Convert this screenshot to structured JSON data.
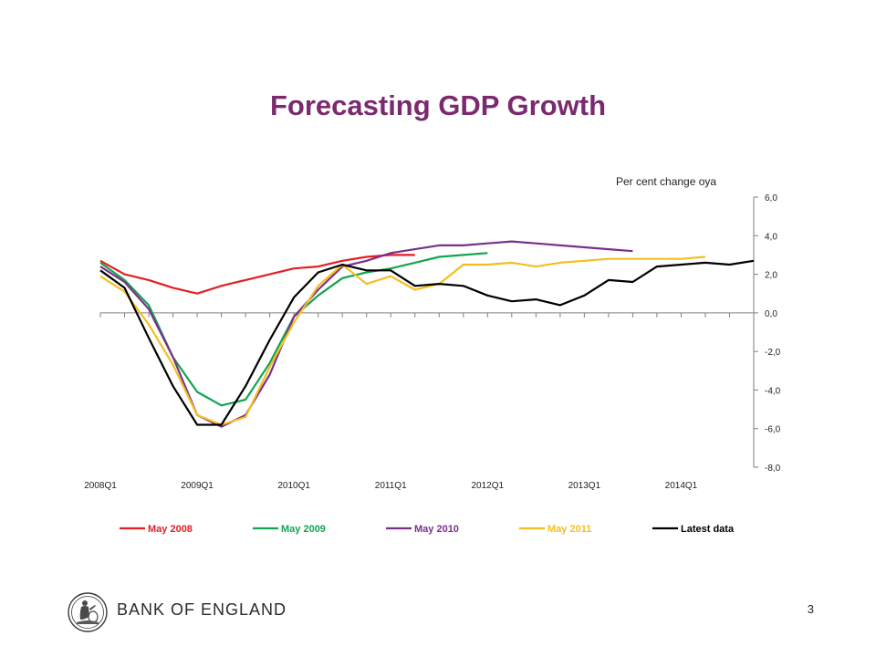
{
  "slide": {
    "title": "Forecasting GDP Growth",
    "page_number": "3",
    "org_name": "BANK OF ENGLAND",
    "logo_icon": "britannia-seal-icon"
  },
  "chart_data": {
    "type": "line",
    "title": "",
    "unit_label": "Per cent change oya",
    "ylim": [
      -8,
      6
    ],
    "y_ticks": [
      "6,0",
      "4,0",
      "2,0",
      "0,0",
      "-2,0",
      "-4,0",
      "-6,0",
      "-8,0"
    ],
    "y_tick_values": [
      6,
      4,
      2,
      0,
      -2,
      -4,
      -6,
      -8
    ],
    "x_tick_labels": [
      "2008Q1",
      "2009Q1",
      "2010Q1",
      "2011Q1",
      "2012Q1",
      "2013Q1",
      "2014Q1"
    ],
    "y_axis_position": "right",
    "legend_position": "bottom",
    "grid": false,
    "x": [
      "2008Q1",
      "2008Q2",
      "2008Q3",
      "2008Q4",
      "2009Q1",
      "2009Q2",
      "2009Q3",
      "2009Q4",
      "2010Q1",
      "2010Q2",
      "2010Q3",
      "2010Q4",
      "2011Q1",
      "2011Q2",
      "2011Q3",
      "2011Q4",
      "2012Q1",
      "2012Q2",
      "2012Q3",
      "2012Q4",
      "2013Q1",
      "2013Q2",
      "2013Q3",
      "2013Q4",
      "2014Q1",
      "2014Q2",
      "2014Q3",
      "2014Q4"
    ],
    "series": [
      {
        "name": "May 2008",
        "color": "#e31e24",
        "values": [
          2.7,
          2.0,
          1.7,
          1.3,
          1.0,
          1.4,
          1.7,
          2.0,
          2.3,
          2.4,
          2.7,
          2.9,
          3.0,
          3.0,
          null,
          null,
          null,
          null,
          null,
          null,
          null,
          null,
          null,
          null,
          null,
          null,
          null,
          null
        ]
      },
      {
        "name": "May 2009",
        "color": "#12a54f",
        "values": [
          2.6,
          1.7,
          0.4,
          -2.3,
          -4.1,
          -4.8,
          -4.5,
          -2.6,
          -0.2,
          0.9,
          1.8,
          2.1,
          2.3,
          2.6,
          2.9,
          3.0,
          3.1,
          null,
          null,
          null,
          null,
          null,
          null,
          null,
          null,
          null,
          null,
          null
        ]
      },
      {
        "name": "May 2010",
        "color": "#7b2f8c",
        "values": [
          2.4,
          1.6,
          0.2,
          -2.3,
          -5.3,
          -5.9,
          -5.3,
          -3.2,
          -0.2,
          1.2,
          2.4,
          2.7,
          3.1,
          3.3,
          3.5,
          3.5,
          3.6,
          3.7,
          3.6,
          3.5,
          3.4,
          3.3,
          3.2,
          null,
          null,
          null,
          null,
          null
        ]
      },
      {
        "name": "May 2011",
        "color": "#f4bf1f",
        "values": [
          1.9,
          1.1,
          -0.6,
          -2.7,
          -5.3,
          -5.8,
          -5.4,
          -2.8,
          -0.5,
          1.4,
          2.5,
          1.5,
          1.9,
          1.2,
          1.5,
          2.5,
          2.5,
          2.6,
          2.4,
          2.6,
          2.7,
          2.8,
          2.8,
          2.8,
          2.8,
          2.9,
          null,
          null
        ]
      },
      {
        "name": "Latest data",
        "color": "#000000",
        "values": [
          2.2,
          1.3,
          -1.3,
          -3.8,
          -5.8,
          -5.8,
          -3.8,
          -1.4,
          0.8,
          2.1,
          2.5,
          2.2,
          2.2,
          1.4,
          1.5,
          1.4,
          0.9,
          0.6,
          0.7,
          0.4,
          0.9,
          1.7,
          1.6,
          2.4,
          2.5,
          2.6,
          2.5,
          2.7
        ]
      }
    ]
  }
}
